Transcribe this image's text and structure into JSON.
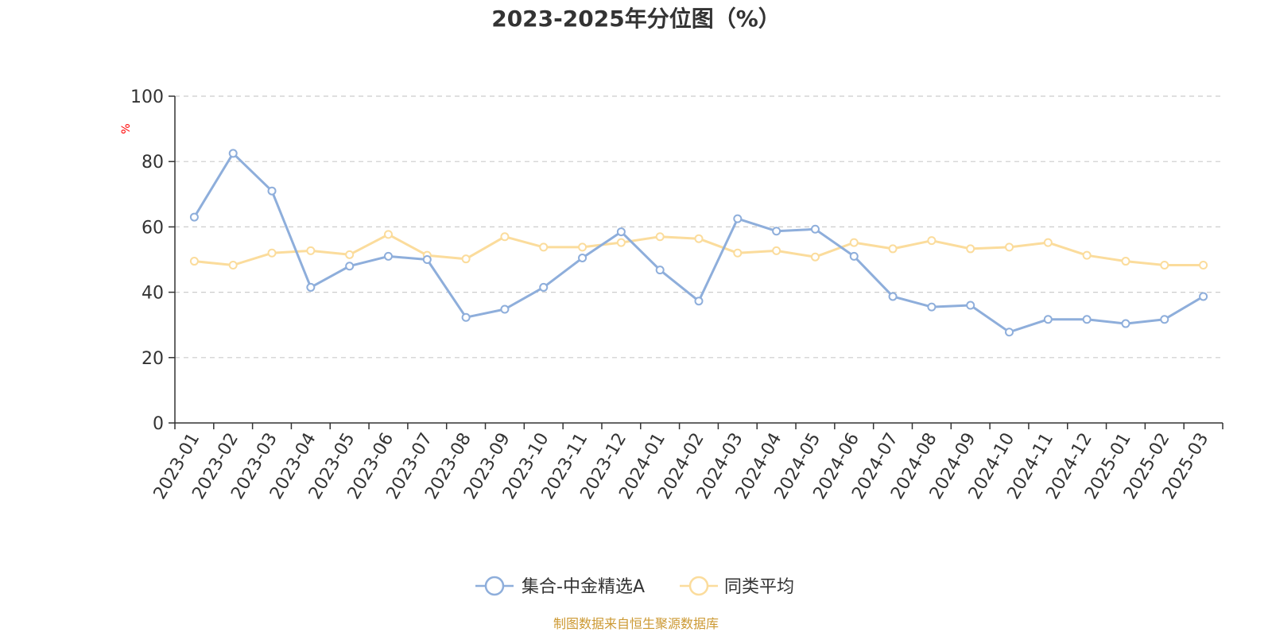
{
  "chart_data": {
    "type": "line",
    "title": "2023-2025年分位图（%）",
    "ylabel": "%",
    "xlabel": "",
    "ylim": [
      0,
      100
    ],
    "yticks": [
      0,
      20,
      40,
      60,
      80,
      100
    ],
    "grid": true,
    "legend_position": "bottom-center",
    "categories": [
      "2023-01",
      "2023-02",
      "2023-03",
      "2023-04",
      "2023-05",
      "2023-06",
      "2023-07",
      "2023-08",
      "2023-09",
      "2023-10",
      "2023-11",
      "2023-12",
      "2024-01",
      "2024-02",
      "2024-03",
      "2024-04",
      "2024-05",
      "2024-06",
      "2024-07",
      "2024-08",
      "2024-09",
      "2024-10",
      "2024-11",
      "2024-12",
      "2025-01",
      "2025-02",
      "2025-03"
    ],
    "series": [
      {
        "name": "集合-中金精选A",
        "color": "#8eaedb",
        "values": [
          63,
          82.5,
          71,
          41.5,
          48,
          51,
          50,
          32.3,
          34.8,
          41.5,
          50.5,
          58.5,
          46.8,
          37.3,
          62.5,
          58.7,
          59.3,
          51,
          38.7,
          35.5,
          36,
          27.8,
          31.7,
          31.7,
          30.4,
          31.7,
          38.7
        ]
      },
      {
        "name": "同类平均",
        "color": "#fbdc9c",
        "values": [
          49.5,
          48.3,
          52,
          52.7,
          51.5,
          57.7,
          51.3,
          50.2,
          57,
          53.8,
          53.8,
          55.2,
          57,
          56.4,
          52,
          52.7,
          50.8,
          55.2,
          53.3,
          55.8,
          53.3,
          53.8,
          55.2,
          51.3,
          49.5,
          48.3,
          48.3
        ]
      }
    ],
    "source_text": "制图数据来自恒生聚源数据库",
    "colors": {
      "unit_label": "#ff0000",
      "source_text": "#cc9933",
      "axis": "#333333",
      "grid": "#cccccc"
    }
  }
}
